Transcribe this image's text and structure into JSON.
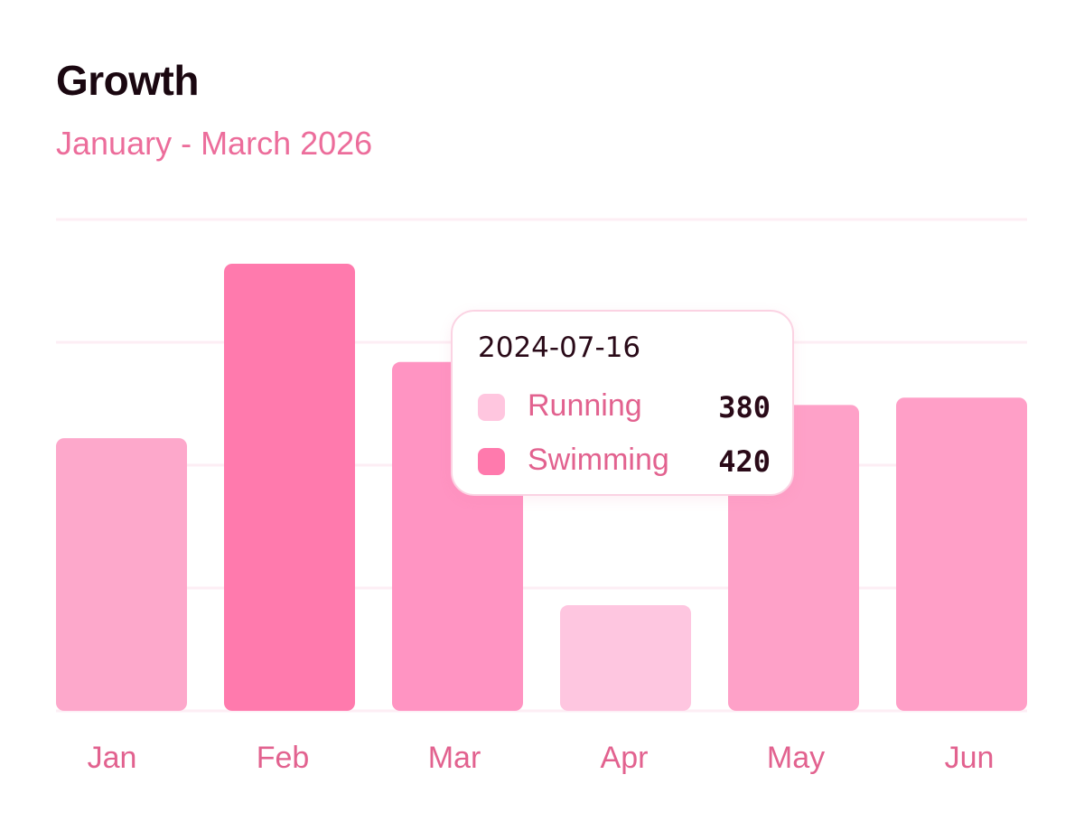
{
  "chart_data": {
    "type": "bar",
    "title": "Growth",
    "subtitle": "January - March 2026",
    "categories": [
      "Jan",
      "Feb",
      "Mar",
      "Apr",
      "May",
      "Jun"
    ],
    "values": [
      222,
      364,
      284,
      86,
      249,
      255
    ],
    "ylim": [
      0,
      400
    ],
    "grid": true,
    "bar_colors": [
      "#fda8cb",
      "#ff7aad",
      "#ff94c2",
      "#fec6e0",
      "#fea1c8",
      "#ff9fc7"
    ]
  },
  "tooltip": {
    "date": "2024-07-16",
    "rows": [
      {
        "label": "Running",
        "value": "380",
        "color": "#ffc6df"
      },
      {
        "label": "Swimming",
        "value": "420",
        "color": "#ff7aad"
      }
    ]
  }
}
